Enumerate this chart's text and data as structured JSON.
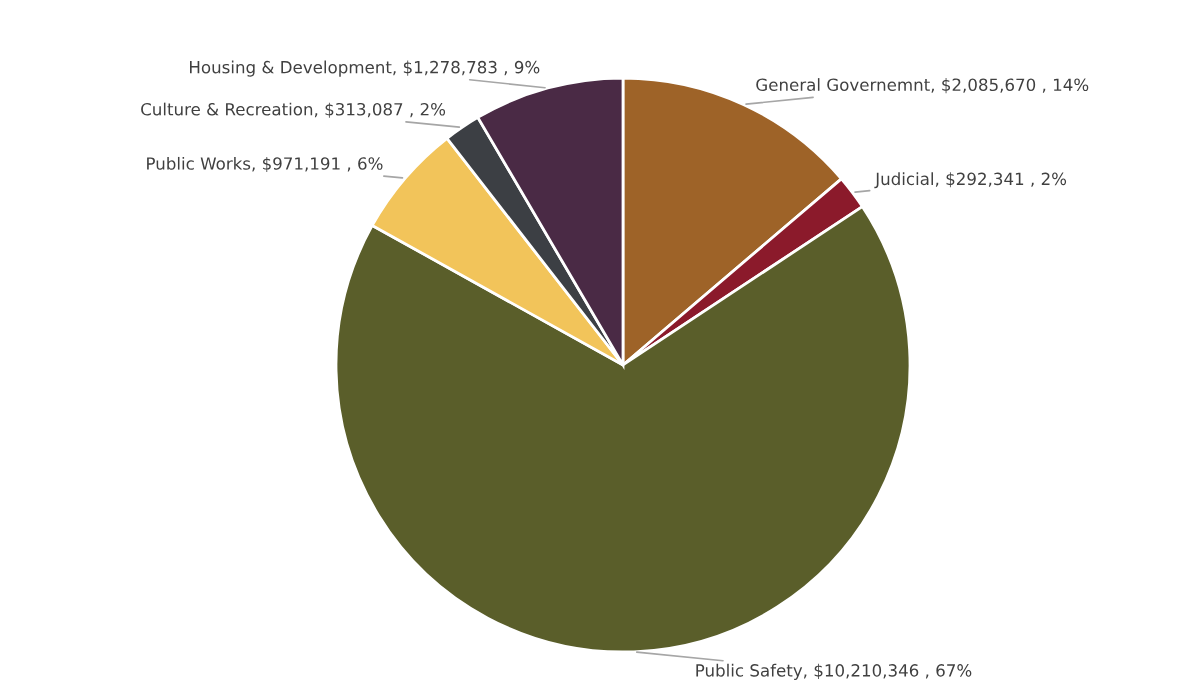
{
  "chart_data": {
    "type": "pie",
    "categories": [
      "General Governemnt",
      "Judicial",
      "Public Safety",
      "Public Works",
      "Culture & Recreation",
      "Housing & Development"
    ],
    "values": [
      2085670,
      292341,
      10210346,
      971191,
      313087,
      1278783
    ],
    "value_labels": [
      "$2,085,670 , 14%",
      "$292,341 , 2%",
      "$10,210,346 , 67%",
      "$971,191 , 6%",
      "$313,087 , 2%",
      "$1,278,783 , 9%"
    ],
    "colors": [
      "#9e6328",
      "#8b1a2b",
      "#5a5e2a",
      "#f2c45a",
      "#3c3f44",
      "#4a2a45"
    ],
    "legend": false
  }
}
